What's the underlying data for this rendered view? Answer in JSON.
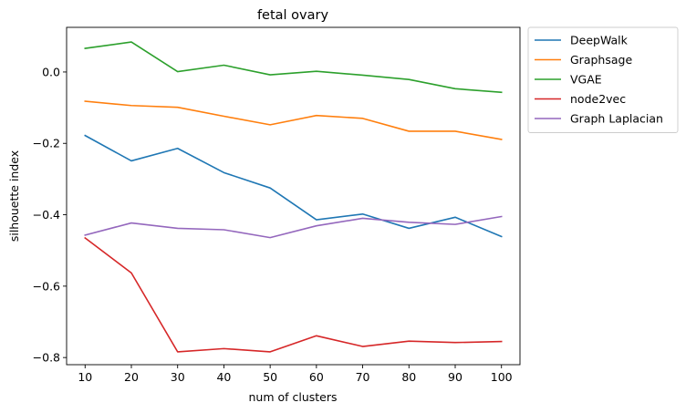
{
  "chart_data": {
    "type": "line",
    "title": "fetal ovary",
    "xlabel": "num of clusters",
    "ylabel": "silhouette index",
    "x": [
      10,
      20,
      30,
      40,
      50,
      60,
      70,
      80,
      90,
      100
    ],
    "xticks": [
      "10",
      "20",
      "30",
      "40",
      "50",
      "60",
      "70",
      "80",
      "90",
      "100"
    ],
    "yticks": [
      0.0,
      -0.2,
      -0.4,
      -0.6,
      -0.8
    ],
    "ytick_labels": [
      "0.0",
      "−0.2",
      "−0.4",
      "−0.6",
      "−0.8"
    ],
    "xlim": [
      6,
      104
    ],
    "ylim": [
      -0.82,
      0.125
    ],
    "grid": false,
    "legend_placement": "outside-upper-right",
    "series": [
      {
        "name": "DeepWalk",
        "color": "#1f77b4",
        "values": [
          -0.178,
          -0.249,
          -0.214,
          -0.282,
          -0.325,
          -0.414,
          -0.398,
          -0.438,
          -0.407,
          -0.461
        ]
      },
      {
        "name": "Graphsage",
        "color": "#ff7f0e",
        "values": [
          -0.082,
          -0.094,
          -0.099,
          -0.124,
          -0.148,
          -0.122,
          -0.13,
          -0.166,
          -0.166,
          -0.189
        ]
      },
      {
        "name": "VGAE",
        "color": "#2ca02c",
        "values": [
          0.066,
          0.084,
          0.001,
          0.019,
          -0.008,
          0.002,
          -0.009,
          -0.021,
          -0.047,
          -0.057
        ]
      },
      {
        "name": "node2vec",
        "color": "#d62728",
        "values": [
          -0.465,
          -0.563,
          -0.784,
          -0.775,
          -0.784,
          -0.739,
          -0.769,
          -0.754,
          -0.758,
          -0.755
        ]
      },
      {
        "name": "Graph Laplacian",
        "color": "#9467bd",
        "values": [
          -0.457,
          -0.423,
          -0.438,
          -0.442,
          -0.464,
          -0.431,
          -0.41,
          -0.421,
          -0.427,
          -0.405
        ]
      }
    ]
  }
}
